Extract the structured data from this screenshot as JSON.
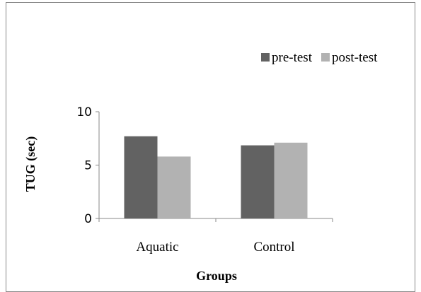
{
  "chart_data": {
    "type": "bar",
    "categories": [
      "Aquatic",
      "Control"
    ],
    "series": [
      {
        "name": "pre-test",
        "values": [
          7.7,
          6.85
        ],
        "color": "#626262"
      },
      {
        "name": "post-test",
        "values": [
          5.8,
          7.1
        ],
        "color": "#b2b2b2"
      }
    ],
    "xlabel": "Groups",
    "ylabel": "TUG (sec)",
    "ylim": [
      0,
      10
    ],
    "yticks": [
      0,
      5,
      10
    ],
    "grid": false,
    "legend_position": "top-right"
  }
}
